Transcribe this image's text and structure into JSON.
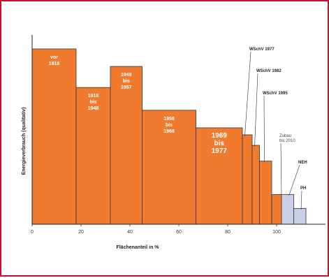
{
  "chart_data": {
    "type": "bar",
    "variant": "variable-width histogram",
    "xlabel": "Flächenanteil in %",
    "ylabel": "Energieverbrauch (qualitativ)",
    "xlim": [
      0,
      120
    ],
    "x_ticks": [
      0,
      20,
      40,
      60,
      80,
      100
    ],
    "y_scale": "qualitative, no tick labels",
    "grid": false,
    "colors": {
      "existing": "#f07a2e",
      "new_standard": "#c9cfe6",
      "edge": "#333333",
      "frame": "#c8102e"
    },
    "bars": [
      {
        "label": [
          "vor",
          "1918"
        ],
        "x_start": 0,
        "x_end": 18,
        "value": 100,
        "kind": "existing"
      },
      {
        "label": [
          "1918",
          "bis",
          "1948"
        ],
        "x_start": 18,
        "x_end": 32,
        "value": 78,
        "kind": "existing"
      },
      {
        "label": [
          "1949",
          "bis",
          "1957"
        ],
        "x_start": 32,
        "x_end": 45,
        "value": 90,
        "kind": "existing"
      },
      {
        "label": [
          "1958",
          "bis",
          "1968"
        ],
        "x_start": 45,
        "x_end": 67,
        "value": 65,
        "kind": "existing"
      },
      {
        "label": [
          "1969",
          "bis",
          "1977"
        ],
        "x_start": 67,
        "x_end": 86,
        "value": 55,
        "kind": "existing",
        "large": true
      },
      {
        "label": [],
        "x_start": 86,
        "x_end": 90,
        "value": 51,
        "kind": "existing"
      },
      {
        "label": [],
        "x_start": 90,
        "x_end": 93,
        "value": 45,
        "kind": "existing"
      },
      {
        "label": [],
        "x_start": 93,
        "x_end": 98,
        "value": 36,
        "kind": "existing"
      },
      {
        "label": [],
        "x_start": 98,
        "x_end": 102,
        "value": 17,
        "kind": "existing"
      },
      {
        "label": [],
        "x_start": 102,
        "x_end": 107,
        "value": 17,
        "kind": "new_standard"
      },
      {
        "label": [],
        "x_start": 107,
        "x_end": 112,
        "value": 9,
        "kind": "new_standard"
      }
    ],
    "annotations": [
      {
        "text": "WSchV 1977",
        "points_to_x": 87,
        "points_to_value": 51
      },
      {
        "text": "WSchV 1982",
        "points_to_x": 91,
        "points_to_value": 45
      },
      {
        "text": "WSchV 1995",
        "points_to_x": 95,
        "points_to_value": 36
      },
      {
        "text": [
          "Zubau",
          "bis 2010"
        ],
        "points_to_x": 102,
        "points_to_value": 18,
        "style": "light"
      },
      {
        "text": "NEH",
        "points_to_x": 105,
        "points_to_value": 17
      },
      {
        "text": "PH",
        "points_to_x": 110,
        "points_to_value": 9
      }
    ]
  }
}
